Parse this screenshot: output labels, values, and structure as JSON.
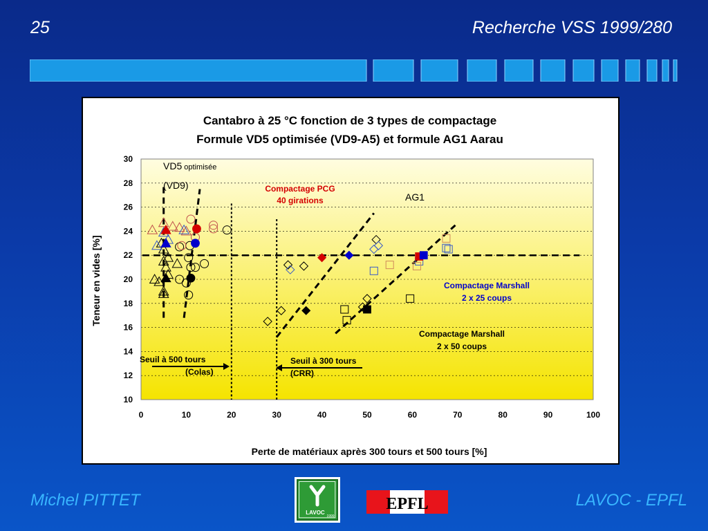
{
  "slide": {
    "number": "25",
    "title": "Recherche VSS 1999/280",
    "footer_left": "Michel PITTET",
    "footer_right": "LAVOC - EPFL",
    "logo_lavoc_text": "LAVOC",
    "logo_lavoc_year": "1999",
    "logo_epfl_text": "EPFL"
  },
  "colors": {
    "background_top": "#0a2a8a",
    "background_bottom": "#0a55c8",
    "accent_light_blue": "#38b6ff",
    "deco_bar": "#1a9ae6",
    "plot_bg_top": "#fffde0",
    "plot_bg_bottom": "#f5e400",
    "pcg_red": "#d40000",
    "marshall_blue": "#0000cc",
    "pcg_marker": "#c0504d",
    "marshall25_marker": "#3a5cc7",
    "aau_orange": "#d08a5a",
    "lavoc_green": "#2e9b36"
  },
  "chart_data": {
    "type": "scatter",
    "title_line1": "Cantabro à 25 °C fonction de 3 types de compactage",
    "title_line2": "Formule VD5 optimisée (VD9-A5) et formule AG1 Aarau",
    "xlabel": "Perte de matériaux après 300 tours et 500 tours  [%]",
    "ylabel": "Teneur en vides  [%]",
    "xlim": [
      0,
      100
    ],
    "ylim": [
      10,
      30
    ],
    "x_ticks": [
      0,
      10,
      20,
      30,
      40,
      50,
      60,
      70,
      80,
      90,
      100
    ],
    "y_ticks": [
      10,
      12,
      14,
      16,
      18,
      20,
      22,
      24,
      26,
      28,
      30
    ],
    "grid": "horizontal dotted",
    "labels": {
      "vd5_main": "VD5",
      "vd5_small": " optimisée",
      "vd9": "(VD9)",
      "ag1": "AG1",
      "pcg_line1": "Compactage PCG",
      "pcg_line2": "40 girations",
      "m25_line1": "Compactage Marshall",
      "m25_line2": "2 x 25 coups",
      "m50_line1": "Compactage Marshall",
      "m50_line2": "2 x 50 coups",
      "seuil500_line1": "Seuil à 500 tours",
      "seuil500_line2": "(Colas)",
      "seuil300_line1": "Seuil à 300 tours",
      "seuil300_line2": "(CRR)"
    },
    "reference_lines": {
      "void_threshold_y": 22,
      "colas_threshold_x": 20,
      "crr_threshold_x": 30
    },
    "series": [
      {
        "marker": "triangle",
        "fill": "none",
        "color": "#000000",
        "points": [
          [
            3,
            20
          ],
          [
            4,
            19.8
          ],
          [
            5,
            21.5
          ],
          [
            5,
            19
          ],
          [
            5.5,
            21
          ],
          [
            6,
            20.4
          ],
          [
            5,
            22.5
          ],
          [
            4.5,
            23
          ],
          [
            6,
            21.8
          ],
          [
            8,
            21.3
          ],
          [
            5,
            18.8
          ]
        ]
      },
      {
        "marker": "triangle",
        "fill": "none",
        "color": "#c0504d",
        "points": [
          [
            2.5,
            24.1
          ],
          [
            5,
            24.7
          ],
          [
            7,
            24.4
          ],
          [
            10,
            24
          ],
          [
            8.5,
            24.3
          ]
        ]
      },
      {
        "marker": "triangle",
        "fill": "none",
        "color": "#3a5cc7",
        "points": [
          [
            3.5,
            22.8
          ],
          [
            6,
            23.3
          ],
          [
            9.5,
            24.1
          ],
          [
            5,
            23.9
          ]
        ]
      },
      {
        "marker": "triangle",
        "fill": "solid",
        "color": "#d40000",
        "points": [
          [
            5.5,
            24.1
          ]
        ]
      },
      {
        "marker": "triangle",
        "fill": "solid",
        "color": "#0000cc",
        "points": [
          [
            5.5,
            23
          ]
        ]
      },
      {
        "marker": "triangle",
        "fill": "solid",
        "color": "#000000",
        "points": [
          [
            5.5,
            20.1
          ]
        ]
      },
      {
        "marker": "circle",
        "fill": "none",
        "color": "#000000",
        "points": [
          [
            8.5,
            22.7
          ],
          [
            10.5,
            21.8
          ],
          [
            11,
            21
          ],
          [
            12,
            21
          ],
          [
            14,
            21.3
          ],
          [
            8.5,
            20
          ],
          [
            10,
            19.7
          ],
          [
            10.5,
            18.7
          ],
          [
            19,
            24.1
          ],
          [
            10.8,
            22.8
          ]
        ]
      },
      {
        "marker": "circle",
        "fill": "none",
        "color": "#c0504d",
        "points": [
          [
            11,
            25
          ],
          [
            16,
            24.5
          ],
          [
            12,
            23.5
          ],
          [
            16,
            24.2
          ],
          [
            9,
            22.8
          ]
        ]
      },
      {
        "marker": "circle",
        "fill": "solid",
        "color": "#d40000",
        "points": [
          [
            12.3,
            24.2
          ]
        ]
      },
      {
        "marker": "circle",
        "fill": "solid",
        "color": "#0000cc",
        "points": [
          [
            12,
            23
          ]
        ]
      },
      {
        "marker": "circle",
        "fill": "solid",
        "color": "#000000",
        "points": [
          [
            11,
            20.1
          ]
        ]
      },
      {
        "marker": "diamond",
        "fill": "none",
        "color": "#000000",
        "points": [
          [
            28,
            16.5
          ],
          [
            31,
            17.4
          ],
          [
            32.5,
            21.2
          ],
          [
            36,
            21.1
          ],
          [
            50,
            18.4
          ],
          [
            49,
            17.7
          ],
          [
            52,
            23.3
          ]
        ]
      },
      {
        "marker": "diamond",
        "fill": "none",
        "color": "#3a5cc7",
        "points": [
          [
            33,
            20.8
          ],
          [
            51.5,
            22.5
          ],
          [
            52.5,
            22.8
          ]
        ]
      },
      {
        "marker": "diamond",
        "fill": "solid",
        "color": "#d40000",
        "points": [
          [
            40,
            21.8
          ]
        ]
      },
      {
        "marker": "diamond",
        "fill": "solid",
        "color": "#0000cc",
        "points": [
          [
            46,
            22
          ]
        ]
      },
      {
        "marker": "diamond",
        "fill": "solid",
        "color": "#000000",
        "points": [
          [
            36.5,
            17.4
          ]
        ]
      },
      {
        "marker": "square",
        "fill": "none",
        "color": "#000000",
        "points": [
          [
            45,
            17.5
          ],
          [
            45.5,
            16.6
          ],
          [
            59.5,
            18.4
          ]
        ]
      },
      {
        "marker": "square",
        "fill": "none",
        "color": "#3a5cc7",
        "points": [
          [
            51.5,
            20.7
          ],
          [
            61.5,
            21.5
          ],
          [
            67.5,
            22.6
          ],
          [
            68,
            22.5
          ]
        ]
      },
      {
        "marker": "square",
        "fill": "none",
        "color": "#d08a5a",
        "points": [
          [
            55,
            21.2
          ],
          [
            61,
            21.1
          ],
          [
            67.5,
            23.4
          ]
        ]
      },
      {
        "marker": "square",
        "fill": "solid",
        "color": "#d40000",
        "points": [
          [
            61.5,
            21.9
          ]
        ]
      },
      {
        "marker": "square",
        "fill": "solid",
        "color": "#0000cc",
        "points": [
          [
            62.5,
            22
          ]
        ]
      },
      {
        "marker": "square",
        "fill": "solid",
        "color": "#000000",
        "points": [
          [
            50,
            17.5
          ]
        ]
      }
    ],
    "trend_lines": [
      {
        "name": "VD5 left bound",
        "points": [
          [
            5,
            16.8
          ],
          [
            5,
            28
          ]
        ]
      },
      {
        "name": "VD5 right bound",
        "points": [
          [
            9.5,
            16.8
          ],
          [
            13,
            27.5
          ]
        ]
      },
      {
        "name": "AG1 upper",
        "points": [
          [
            30,
            15.2
          ],
          [
            51.5,
            25.5
          ]
        ]
      },
      {
        "name": "AG1 lower",
        "points": [
          [
            43,
            15.5
          ],
          [
            69.5,
            24.5
          ]
        ]
      }
    ]
  }
}
